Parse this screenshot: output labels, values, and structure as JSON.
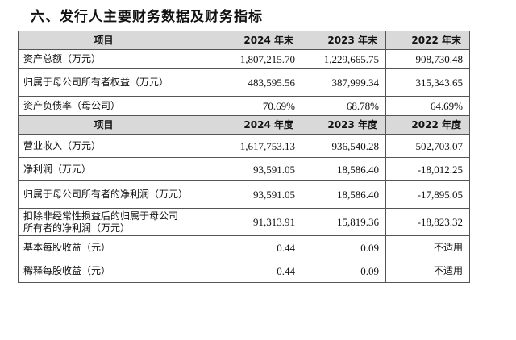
{
  "section_title": "六、发行人主要财务数据及财务指标",
  "balance_table": {
    "header": {
      "item": "项目",
      "col1": "2024 年末",
      "col2": "2023 年末",
      "col3": "2022 年末"
    },
    "rows": [
      {
        "label": "资产总额（万元）",
        "v1": "1,807,215.70",
        "v2": "1,229,665.75",
        "v3": "908,730.48"
      },
      {
        "label": "归属于母公司所有者权益（万元）",
        "v1": "483,595.56",
        "v2": "387,999.34",
        "v3": "315,343.65"
      },
      {
        "label": "资产负债率（母公司）",
        "v1": "70.69%",
        "v2": "68.78%",
        "v3": "64.69%"
      }
    ]
  },
  "income_table": {
    "header": {
      "item": "项目",
      "col1": "2024 年度",
      "col2": "2023 年度",
      "col3": "2022 年度"
    },
    "rows": [
      {
        "label": "营业收入（万元）",
        "v1": "1,617,753.13",
        "v2": "936,540.28",
        "v3": "502,703.07"
      },
      {
        "label": "净利润（万元）",
        "v1": "93,591.05",
        "v2": "18,586.40",
        "v3": "-18,012.25"
      },
      {
        "label": "归属于母公司所有者的净利润（万元）",
        "v1": "93,591.05",
        "v2": "18,586.40",
        "v3": "-17,895.05"
      },
      {
        "label": "扣除非经常性损益后的归属于母公司所有者的净利润（万元）",
        "v1": "91,313.91",
        "v2": "15,819.36",
        "v3": "-18,823.32"
      },
      {
        "label": "基本每股收益（元）",
        "v1": "0.44",
        "v2": "0.09",
        "v3": "不适用"
      },
      {
        "label": "稀释每股收益（元）",
        "v1": "0.44",
        "v2": "0.09",
        "v3": "不适用"
      }
    ]
  }
}
